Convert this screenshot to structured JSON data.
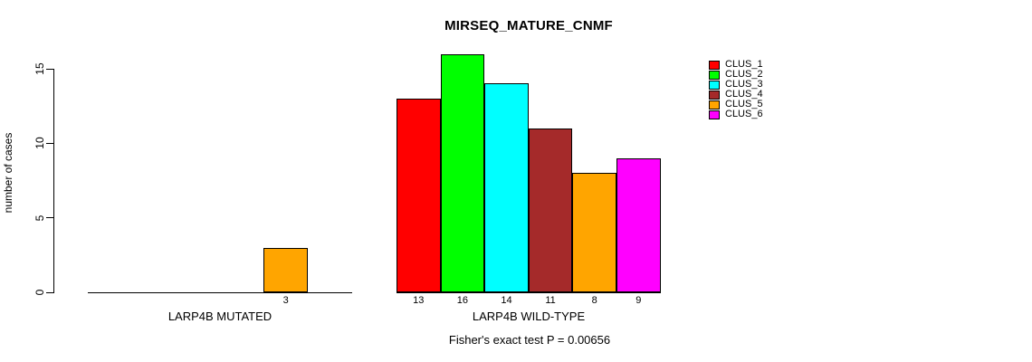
{
  "title": "MIRSEQ_MATURE_CNMF",
  "footer": "Fisher's exact test P = 0.00656",
  "chart_data": {
    "type": "bar",
    "title": "MIRSEQ_MATURE_CNMF",
    "ylabel": "number of cases",
    "ylim": [
      0,
      15
    ],
    "yticks": [
      0,
      5,
      10,
      15
    ],
    "grid": false,
    "legend_position": "topright",
    "series_names": [
      "CLUS_1",
      "CLUS_2",
      "CLUS_3",
      "CLUS_4",
      "CLUS_5",
      "CLUS_6"
    ],
    "series_colors": [
      "#FF0000",
      "#00FF00",
      "#00FFFF",
      "#A52A2A",
      "#FFA500",
      "#FF00FF"
    ],
    "groups": [
      {
        "label": "LARP4B MUTATED",
        "values": [
          0,
          0,
          0,
          0,
          3,
          0
        ]
      },
      {
        "label": "LARP4B WILD-TYPE",
        "values": [
          13,
          16,
          14,
          11,
          8,
          9
        ]
      }
    ],
    "annotation": "Fisher's exact test P = 0.00656"
  }
}
